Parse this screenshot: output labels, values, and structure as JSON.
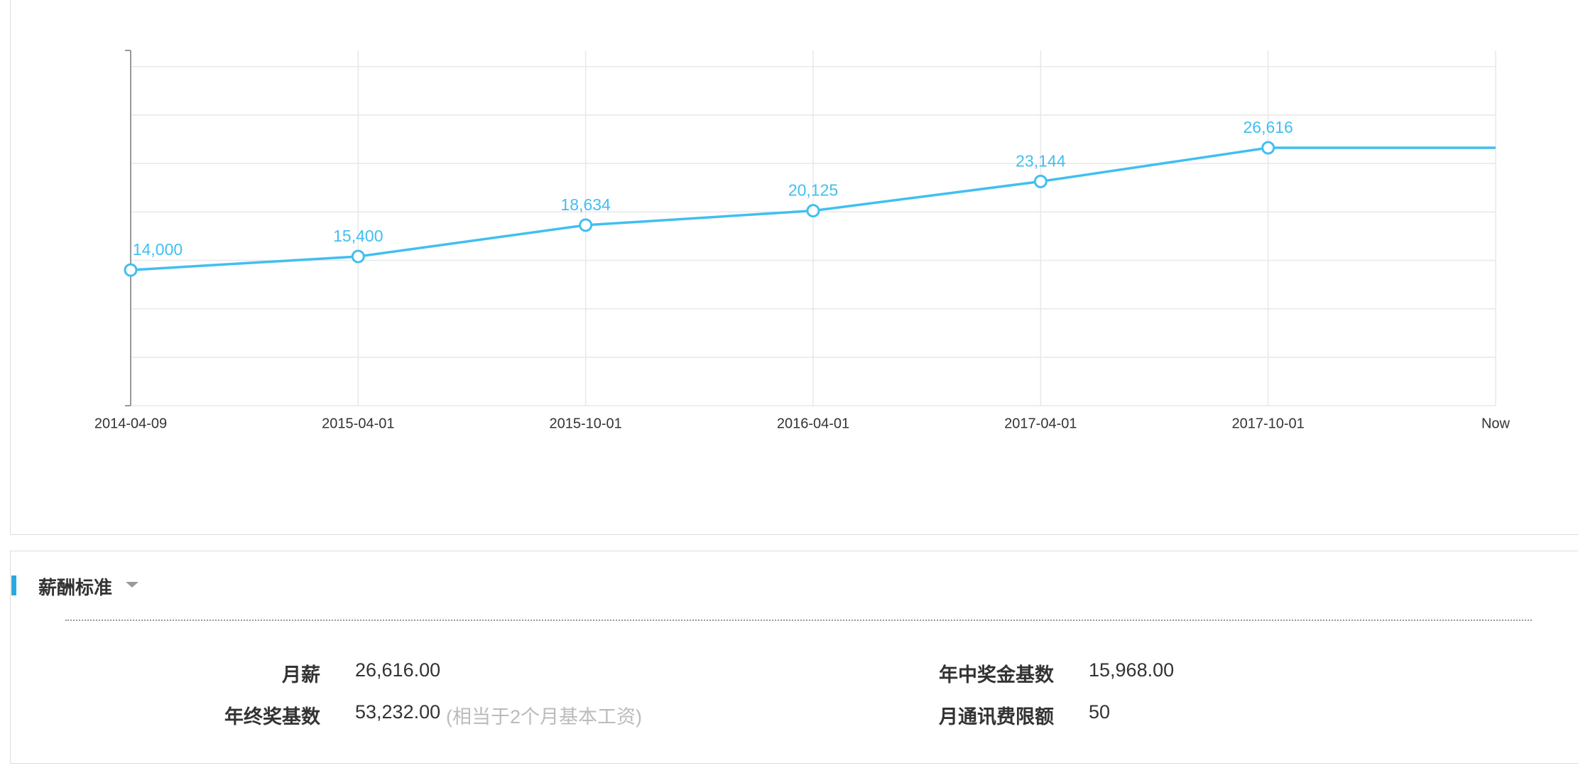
{
  "chart_data": {
    "type": "line",
    "categories": [
      "2014-04-09",
      "2015-04-01",
      "2015-10-01",
      "2016-04-01",
      "2017-04-01",
      "2017-10-01",
      "Now"
    ],
    "series": [
      {
        "color": "#41bff0",
        "values": [
          14000,
          15400,
          18634,
          20125,
          23144,
          26616,
          26616
        ],
        "value_labels": [
          "14,000",
          "15,400",
          "18,634",
          "20,125",
          "23,144",
          "26,616",
          null
        ]
      }
    ],
    "ylim": [
      0,
      36667
    ],
    "yticks": [
      0,
      5000,
      10000,
      15000,
      20000,
      25000,
      30000,
      35000
    ],
    "grid": true
  },
  "salary_standard": {
    "title": "薪酬标准",
    "fields": [
      {
        "label": "月薪",
        "value": "26,616.00"
      },
      {
        "label": "年中奖金基数",
        "value": "15,968.00"
      },
      {
        "label": "年终奖基数",
        "value": "53,232.00",
        "note": "(相当于2个月基本工资)"
      },
      {
        "label": "月通讯费限额",
        "value": "50"
      }
    ]
  }
}
